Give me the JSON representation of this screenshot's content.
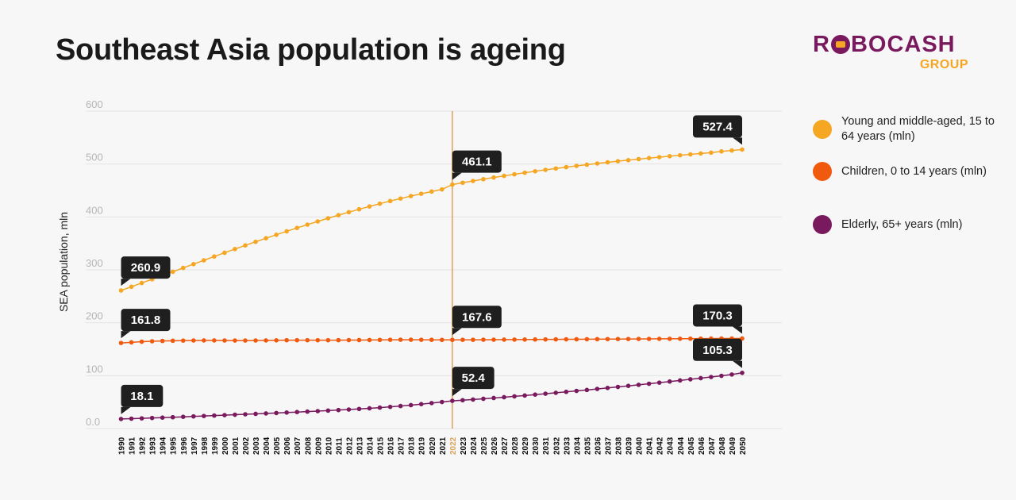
{
  "title": "Southeast Asia population is ageing",
  "logo": {
    "main_pre": "R",
    "main_o": "O",
    "main_post": "BOCASH",
    "sub": "GROUP"
  },
  "colors": {
    "young": "#f5a623",
    "children": "#f05a0f",
    "elderly": "#7a1a5e",
    "highlight_line": "#d9a35a",
    "callout_bg": "#1f1f1f",
    "grid": "#e3e3e3"
  },
  "legend": [
    {
      "label": "Young and middle-aged, 15 to 64 years (mln)",
      "color": "#f5a623"
    },
    {
      "label": "Children, 0 to 14 years (mln)",
      "color": "#f05a0f"
    },
    {
      "label": "Elderly, 65+ years (mln)",
      "color": "#7a1a5e"
    }
  ],
  "chart_data": {
    "type": "line",
    "ylabel": "SEA population, mln",
    "ylim": [
      0,
      600
    ],
    "yticks": [
      "0.0",
      "100",
      "200",
      "300",
      "400",
      "500",
      "600"
    ],
    "highlight_year": "2022",
    "x": [
      "1990",
      "1991",
      "1992",
      "1993",
      "1994",
      "1995",
      "1996",
      "1997",
      "1998",
      "1999",
      "2000",
      "2001",
      "2002",
      "2003",
      "2004",
      "2005",
      "2006",
      "2007",
      "2008",
      "2009",
      "2010",
      "2011",
      "2012",
      "2013",
      "2014",
      "2015",
      "2016",
      "2017",
      "2018",
      "2019",
      "2020",
      "2021",
      "2022",
      "2023",
      "2024",
      "2025",
      "2026",
      "2027",
      "2028",
      "2029",
      "2030",
      "2031",
      "2032",
      "2033",
      "2034",
      "2035",
      "2036",
      "2037",
      "2038",
      "2039",
      "2040",
      "2041",
      "2042",
      "2043",
      "2044",
      "2045",
      "2046",
      "2047",
      "2048",
      "2049",
      "2050"
    ],
    "series": [
      {
        "name": "Young and middle-aged, 15 to 64 years (mln)",
        "key": "young",
        "values": [
          260.9,
          268.0,
          275.1,
          282.2,
          289.3,
          296.4,
          303.6,
          310.8,
          318.0,
          325.2,
          332.3,
          339.3,
          346.2,
          353.0,
          359.7,
          366.3,
          372.8,
          379.2,
          385.4,
          391.5,
          397.5,
          403.3,
          409.0,
          414.5,
          419.8,
          425.0,
          430.0,
          434.8,
          439.4,
          443.8,
          448.0,
          452.0,
          461.1,
          464.6,
          468.0,
          471.3,
          474.5,
          477.6,
          480.6,
          483.5,
          486.3,
          489.0,
          491.6,
          494.1,
          496.5,
          498.8,
          501.0,
          503.2,
          505.3,
          507.3,
          509.3,
          511.2,
          513.0,
          514.8,
          516.5,
          518.2,
          519.9,
          521.5,
          523.9,
          525.6,
          527.4
        ],
        "labels": [
          {
            "index": 0,
            "text": "260.9"
          },
          {
            "index": 32,
            "text": "461.1"
          },
          {
            "index": 60,
            "text": "527.4"
          }
        ]
      },
      {
        "name": "Children, 0 to 14 years (mln)",
        "key": "children",
        "values": [
          161.8,
          163.0,
          164.2,
          165.0,
          165.6,
          166.0,
          166.3,
          166.5,
          166.6,
          166.6,
          166.5,
          166.4,
          166.4,
          166.5,
          166.6,
          166.8,
          167.0,
          167.0,
          167.0,
          167.0,
          167.0,
          167.1,
          167.2,
          167.3,
          167.4,
          167.6,
          167.8,
          167.9,
          167.9,
          167.8,
          167.7,
          167.6,
          167.6,
          167.7,
          167.8,
          167.9,
          168.0,
          168.1,
          168.2,
          168.3,
          168.4,
          168.5,
          168.6,
          168.7,
          168.8,
          168.9,
          169.0,
          169.1,
          169.2,
          169.3,
          169.4,
          169.5,
          169.6,
          169.7,
          169.8,
          169.9,
          170.0,
          170.1,
          170.2,
          170.2,
          170.3
        ],
        "labels": [
          {
            "index": 0,
            "text": "161.8"
          },
          {
            "index": 32,
            "text": "167.6"
          },
          {
            "index": 60,
            "text": "170.3"
          }
        ]
      },
      {
        "name": "Elderly, 65+ years (mln)",
        "key": "elderly",
        "values": [
          18.1,
          18.7,
          19.3,
          20.0,
          20.7,
          21.4,
          22.2,
          23.0,
          23.8,
          24.6,
          25.4,
          26.2,
          27.0,
          27.8,
          28.6,
          29.4,
          30.3,
          31.2,
          32.1,
          33.0,
          34.0,
          35.0,
          36.0,
          37.1,
          38.3,
          39.6,
          41.0,
          42.6,
          44.3,
          46.2,
          48.2,
          50.2,
          52.4,
          53.6,
          54.9,
          56.3,
          57.8,
          59.3,
          60.9,
          62.5,
          64.2,
          65.9,
          67.6,
          69.4,
          71.2,
          73.0,
          74.9,
          76.8,
          78.7,
          80.7,
          82.7,
          84.7,
          86.8,
          88.9,
          91.0,
          93.1,
          95.3,
          97.5,
          99.7,
          102.2,
          105.3
        ],
        "labels": [
          {
            "index": 0,
            "text": "18.1"
          },
          {
            "index": 32,
            "text": "52.4"
          },
          {
            "index": 60,
            "text": "105.3"
          }
        ]
      }
    ]
  }
}
